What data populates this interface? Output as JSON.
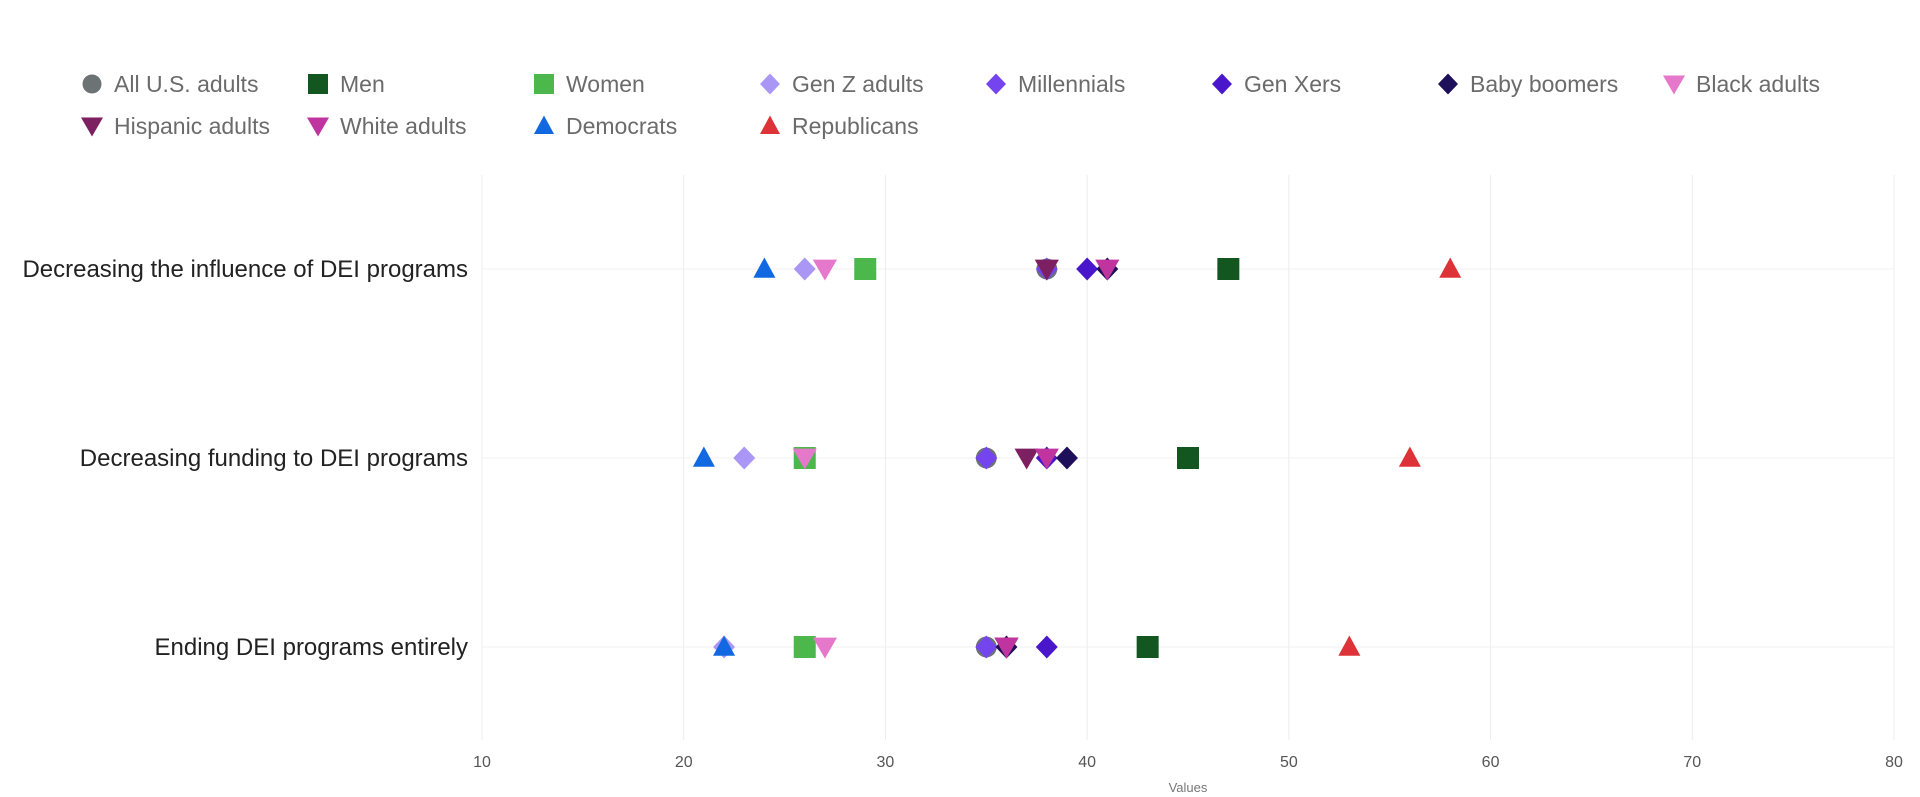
{
  "chart_data": {
    "type": "scatter",
    "xlabel": "Values",
    "xlim": [
      10,
      80
    ],
    "xticks": [
      10,
      20,
      30,
      40,
      50,
      60,
      70,
      80
    ],
    "grid": true,
    "legend_position": "top",
    "categories": [
      "Decreasing the influence of DEI programs",
      "Decreasing funding to DEI programs",
      "Ending DEI programs entirely"
    ],
    "series": [
      {
        "name": "All U.S. adults",
        "marker": "circle",
        "color": "#6d7275",
        "values": [
          38,
          35,
          35
        ]
      },
      {
        "name": "Men",
        "marker": "square",
        "color": "#14561f",
        "values": [
          47,
          45,
          43
        ]
      },
      {
        "name": "Women",
        "marker": "square",
        "color": "#4cb84c",
        "values": [
          29,
          26,
          26
        ]
      },
      {
        "name": "Gen Z adults",
        "marker": "diamond",
        "color": "#a996f5",
        "values": [
          26,
          23,
          22
        ]
      },
      {
        "name": "Millennials",
        "marker": "diamond",
        "color": "#7444ee",
        "values": [
          38,
          35,
          35
        ]
      },
      {
        "name": "Gen Xers",
        "marker": "diamond",
        "color": "#4a16cc",
        "values": [
          40,
          38,
          38
        ]
      },
      {
        "name": "Baby boomers",
        "marker": "diamond",
        "color": "#1e0f5a",
        "values": [
          41,
          39,
          36
        ]
      },
      {
        "name": "Black adults",
        "marker": "triangle-down",
        "color": "#e678cc",
        "values": [
          27,
          26,
          27
        ]
      },
      {
        "name": "Hispanic adults",
        "marker": "triangle-down",
        "color": "#7d2061",
        "values": [
          38,
          37,
          36
        ]
      },
      {
        "name": "White adults",
        "marker": "triangle-down",
        "color": "#c0349f",
        "values": [
          41,
          38,
          36
        ]
      },
      {
        "name": "Democrats",
        "marker": "triangle-up",
        "color": "#1268e0",
        "values": [
          24,
          21,
          22
        ]
      },
      {
        "name": "Republicans",
        "marker": "triangle-up",
        "color": "#dd3338",
        "values": [
          58,
          56,
          53
        ]
      }
    ]
  }
}
